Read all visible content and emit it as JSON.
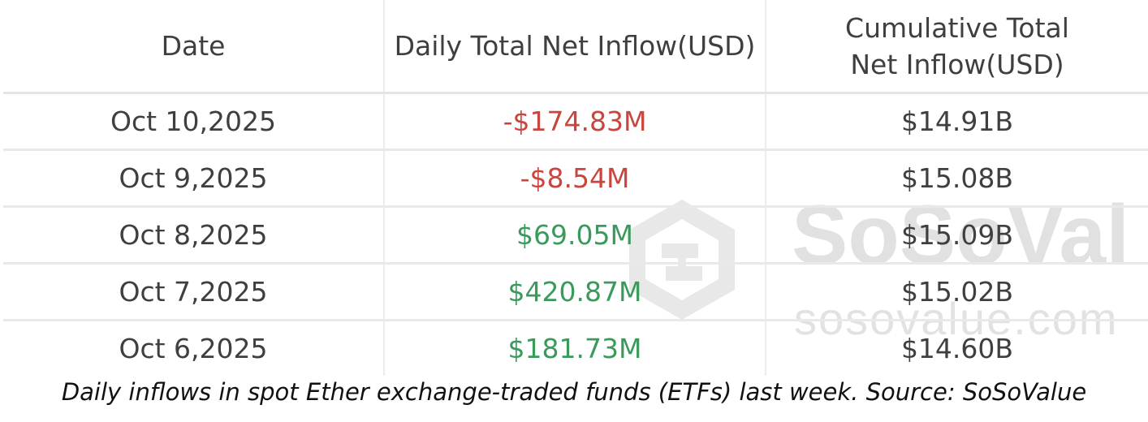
{
  "table": {
    "headers": [
      "Date",
      "Daily Total Net Inflow(USD)",
      "Cumulative Total Net Inflow(USD)"
    ],
    "rows": [
      {
        "date": "Oct 10,2025",
        "daily": "-$174.83M",
        "cumulative": "$14.91B",
        "daily_sign": "negative"
      },
      {
        "date": "Oct 9,2025",
        "daily": "-$8.54M",
        "cumulative": "$15.08B",
        "daily_sign": "negative"
      },
      {
        "date": "Oct 8,2025",
        "daily": "$69.05M",
        "cumulative": "$15.09B",
        "daily_sign": "positive"
      },
      {
        "date": "Oct 7,2025",
        "daily": "$420.87M",
        "cumulative": "$15.02B",
        "daily_sign": "positive"
      },
      {
        "date": "Oct 6,2025",
        "daily": "$181.73M",
        "cumulative": "$14.60B",
        "daily_sign": "positive"
      }
    ]
  },
  "watermark": {
    "brand": "SoSoVal",
    "url": "sosovalue.com",
    "icon": "sosovalue-logo-icon"
  },
  "caption": "Daily inflows in spot Ether exchange-traded funds (ETFs) last week. Source: SoSoValue",
  "colors": {
    "negative": "#c9453d",
    "positive": "#3a9a5c",
    "text": "#3f3f3f",
    "watermark": "#d9d9d9"
  }
}
